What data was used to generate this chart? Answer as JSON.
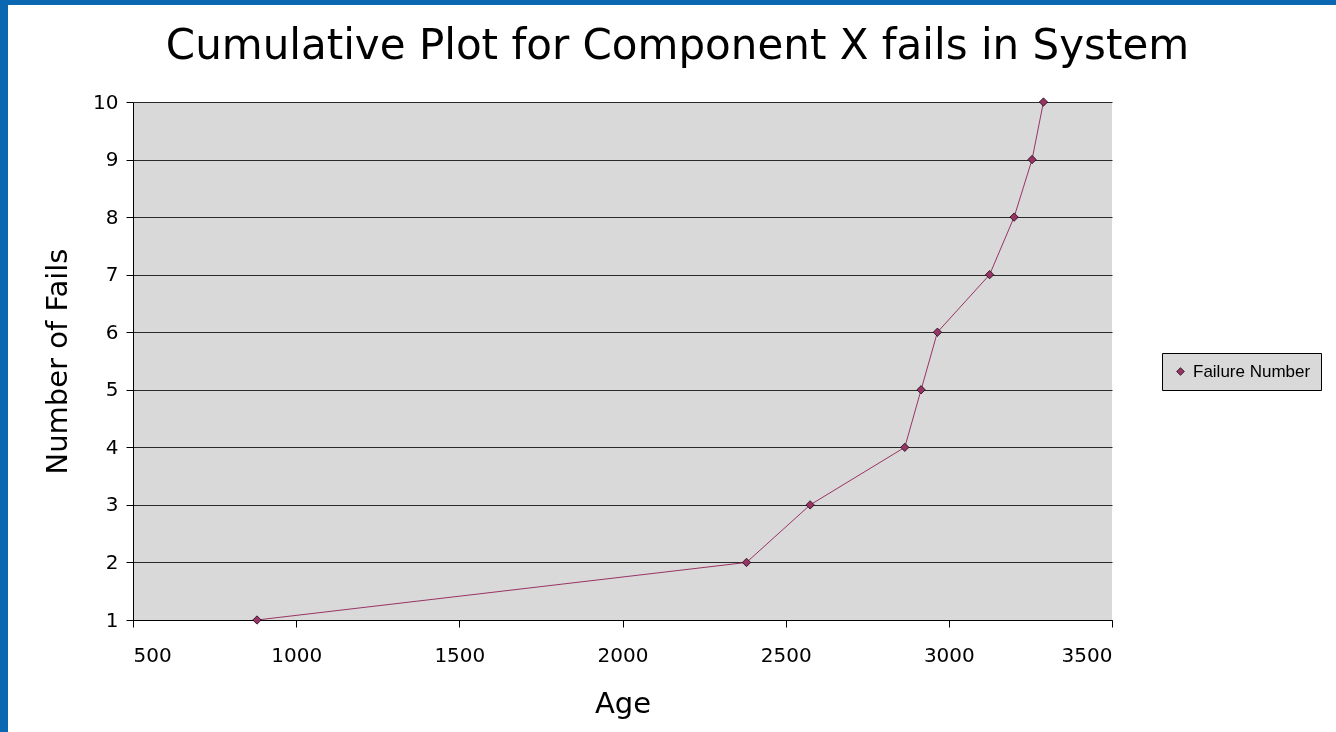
{
  "chart_data": {
    "type": "line",
    "title": "Cumulative Plot for Component X fails in System",
    "xlabel": "Age",
    "ylabel": "Number of Fails",
    "x": [
      880,
      2380,
      2575,
      2865,
      2915,
      2965,
      3125,
      3200,
      3255,
      3290
    ],
    "series": [
      {
        "name": "Failure Number",
        "color": "#993366",
        "values": [
          1,
          2,
          3,
          4,
          5,
          6,
          7,
          8,
          9,
          10
        ]
      }
    ],
    "xlim": [
      500,
      3500
    ],
    "xticks": [
      500,
      1000,
      1500,
      2000,
      2500,
      3000,
      3500
    ],
    "ylim": [
      1,
      10
    ],
    "yticks": [
      1,
      2,
      3,
      4,
      5,
      6,
      7,
      8,
      9,
      10
    ],
    "grid": "y",
    "legend": "right",
    "marker": "diamond",
    "line_style": "solid"
  }
}
